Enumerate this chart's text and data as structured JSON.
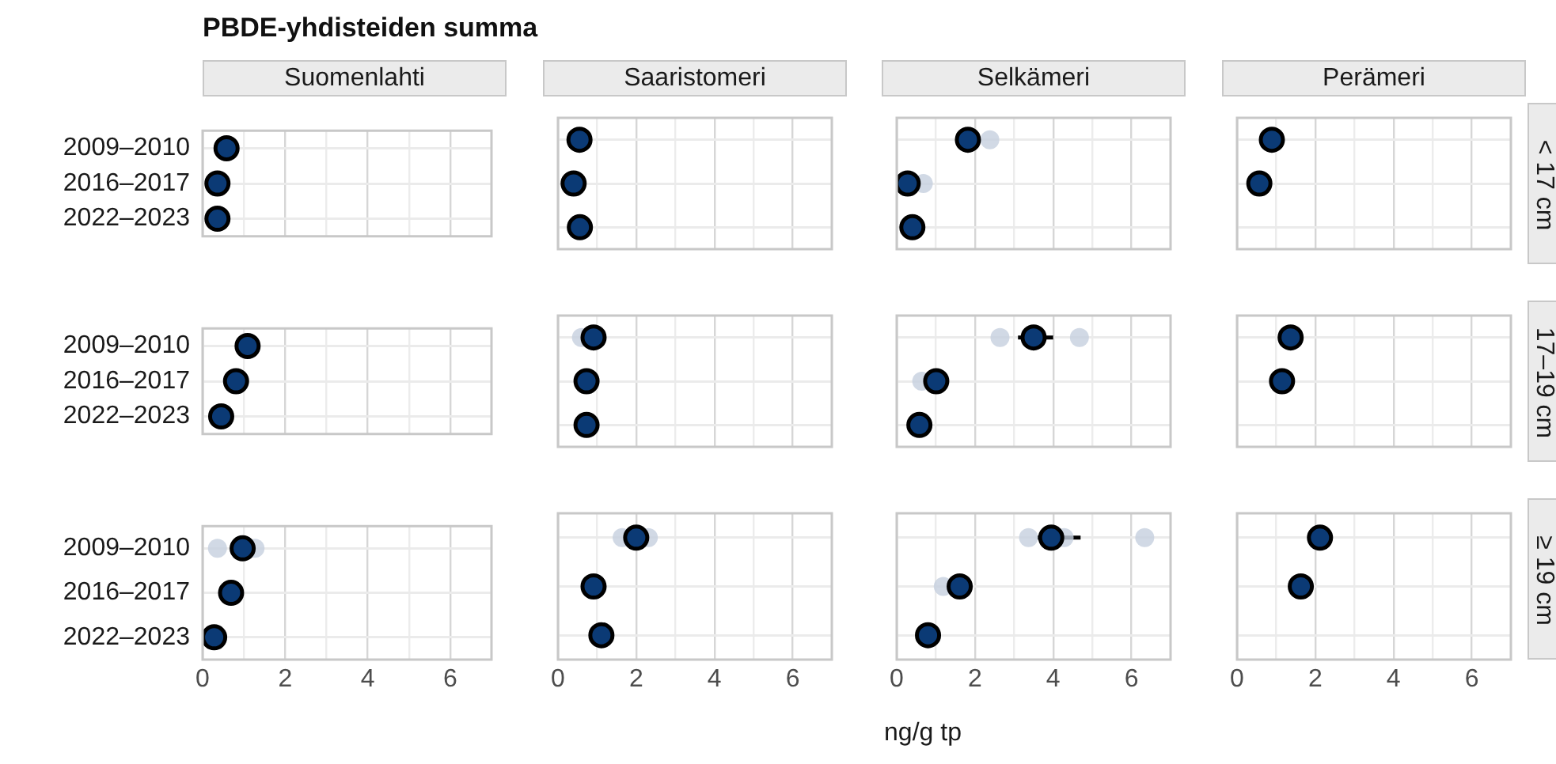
{
  "chart_data": [
    {
      "type": "scatter",
      "title": "PBDE-yhdisteiden summa",
      "subtitle": "Suomenlahti",
      "orientation": "horizontal",
      "categories": [
        "2009–2010",
        "2016–2017",
        "2022–2023"
      ],
      "xlim": [
        0,
        7
      ],
      "xticks": [
        0,
        {
          "value": 1,
          "label": null
        },
        2,
        {
          "value": 3,
          "label": null
        },
        4,
        {
          "value": 5,
          "label": null
        },
        6
      ],
      "grid": true,
      "marker": "circle",
      "tick_labels": "y",
      "series": [
        {
          "color": "#0b3a75",
          "values": [
            0.58,
            0.36,
            0.36
          ]
        }
      ]
    },
    {
      "type": "scatter",
      "subtitle": "Saaristomeri",
      "orientation": "horizontal",
      "categories": [
        "2009–2010",
        "2016–2017",
        "2022–2023"
      ],
      "xlim": [
        0,
        7
      ],
      "xticks": [
        0,
        {
          "value": 1,
          "label": null
        },
        2,
        {
          "value": 3,
          "label": null
        },
        4,
        {
          "value": 5,
          "label": null
        },
        6
      ],
      "grid": true,
      "marker": "circle",
      "tick_labels": false,
      "series": [
        {
          "color": "#0b3a75",
          "values": [
            0.55,
            0.4,
            0.56
          ]
        }
      ]
    },
    {
      "type": "scatter",
      "subtitle": "Selkämeri",
      "orientation": "horizontal",
      "categories": [
        "2009–2010",
        "2016–2017",
        "2022–2023"
      ],
      "xlim": [
        0,
        7
      ],
      "xticks": [
        0,
        {
          "value": 1,
          "label": null
        },
        2,
        {
          "value": 3,
          "label": null
        },
        4,
        {
          "value": 5,
          "label": null
        },
        6
      ],
      "grid": true,
      "marker": "circle",
      "tick_labels": false,
      "series": [
        {
          "color": "#c5d0de",
          "x": [
            "2009–2010",
            "2016–2017"
          ],
          "values": [
            2.38,
            0.68
          ]
        },
        {
          "color": "#0b3a75",
          "values": [
            1.82,
            0.28,
            0.4
          ]
        }
      ]
    },
    {
      "type": "scatter",
      "subtitle": "Perämeri",
      "y2label": "< 17 cm",
      "orientation": "horizontal",
      "categories": [
        "2009–2010",
        "2016–2017",
        "2022–2023"
      ],
      "xlim": [
        0,
        7
      ],
      "xticks": [
        0,
        {
          "value": 1,
          "label": null
        },
        2,
        {
          "value": 3,
          "label": null
        },
        4,
        {
          "value": 5,
          "label": null
        },
        6
      ],
      "grid": true,
      "marker": "circle",
      "tick_labels": false,
      "series": [
        {
          "color": "#0b3a75",
          "values": [
            0.89,
            0.57,
            null
          ]
        }
      ]
    },
    {
      "type": "scatter",
      "orientation": "horizontal",
      "categories": [
        "2009–2010",
        "2016–2017",
        "2022–2023"
      ],
      "xlim": [
        0,
        7
      ],
      "xticks": [
        0,
        {
          "value": 1,
          "label": null
        },
        2,
        {
          "value": 3,
          "label": null
        },
        4,
        {
          "value": 5,
          "label": null
        },
        6
      ],
      "grid": true,
      "marker": "circle",
      "tick_labels": "y",
      "series": [
        {
          "color": "#0b3a75",
          "values": [
            1.09,
            0.81,
            0.45
          ]
        }
      ]
    },
    {
      "type": "scatter",
      "orientation": "horizontal",
      "categories": [
        "2009–2010",
        "2016–2017",
        "2022–2023"
      ],
      "xlim": [
        0,
        7
      ],
      "xticks": [
        0,
        {
          "value": 1,
          "label": null
        },
        2,
        {
          "value": 3,
          "label": null
        },
        4,
        {
          "value": 5,
          "label": null
        },
        6
      ],
      "grid": true,
      "marker": "circle",
      "tick_labels": false,
      "series": [
        {
          "color": "#c5d0de",
          "x": [
            "2009–2010",
            "2009–2010"
          ],
          "values": [
            0.6,
            null
          ]
        },
        {
          "color": "#0b3a75",
          "values": [
            0.91,
            0.73,
            0.73
          ]
        }
      ]
    },
    {
      "type": "scatter",
      "orientation": "horizontal",
      "categories": [
        "2009–2010",
        "2016–2017",
        "2022–2023"
      ],
      "xlim": [
        0,
        7
      ],
      "xticks": [
        0,
        {
          "value": 1,
          "label": null
        },
        2,
        {
          "value": 3,
          "label": null
        },
        4,
        {
          "value": 5,
          "label": null
        },
        6
      ],
      "grid": true,
      "marker": "circle",
      "tick_labels": false,
      "series": [
        {
          "color": "#c5d0de",
          "x": [
            "2009–2010",
            "2009–2010",
            "2016–2017"
          ],
          "values": [
            2.64,
            4.67,
            0.64
          ]
        },
        {
          "color": "#0b3a75",
          "values": [
            3.5,
            1.01,
            0.58
          ],
          "errors": [
            [
              3.1,
              4.0
            ],
            null,
            null
          ]
        }
      ]
    },
    {
      "type": "scatter",
      "y2label": "17–19 cm",
      "orientation": "horizontal",
      "categories": [
        "2009–2010",
        "2016–2017",
        "2022–2023"
      ],
      "xlim": [
        0,
        7
      ],
      "xticks": [
        0,
        {
          "value": 1,
          "label": null
        },
        2,
        {
          "value": 3,
          "label": null
        },
        4,
        {
          "value": 5,
          "label": null
        },
        6
      ],
      "grid": true,
      "marker": "circle",
      "tick_labels": false,
      "series": [
        {
          "color": "#0b3a75",
          "values": [
            1.37,
            1.15,
            null
          ]
        }
      ]
    },
    {
      "type": "scatter",
      "orientation": "horizontal",
      "categories": [
        "2009–2010",
        "2016–2017",
        "2022–2023"
      ],
      "xlim": [
        0,
        7
      ],
      "xticks": [
        0,
        {
          "value": 1,
          "label": null
        },
        2,
        {
          "value": 3,
          "label": null
        },
        4,
        {
          "value": 5,
          "label": null
        },
        6
      ],
      "grid": true,
      "marker": "circle",
      "series": [
        {
          "color": "#c5d0de",
          "x": [
            "2009–2010",
            "2009–2010"
          ],
          "values": [
            0.36,
            1.27
          ]
        },
        {
          "color": "#0b3a75",
          "values": [
            0.97,
            0.69,
            0.28
          ]
        }
      ]
    },
    {
      "type": "scatter",
      "orientation": "horizontal",
      "categories": [
        "2009–2010",
        "2016–2017",
        "2022–2023"
      ],
      "xlim": [
        0,
        7
      ],
      "xticks": [
        0,
        {
          "value": 1,
          "label": null
        },
        2,
        {
          "value": 3,
          "label": null
        },
        4,
        {
          "value": 5,
          "label": null
        },
        6
      ],
      "grid": true,
      "marker": "circle",
      "tick_labels": "x",
      "series": [
        {
          "color": "#c5d0de",
          "x": [
            "2009–2010",
            "2009–2010"
          ],
          "values": [
            1.64,
            2.31
          ]
        },
        {
          "color": "#0b3a75",
          "values": [
            2.0,
            0.91,
            1.11
          ]
        }
      ]
    },
    {
      "type": "scatter",
      "xlabel": "ng/g tp",
      "orientation": "horizontal",
      "categories": [
        "2009–2010",
        "2016–2017",
        "2022–2023"
      ],
      "xlim": [
        0,
        7
      ],
      "xticks": [
        0,
        {
          "value": 1,
          "label": null
        },
        2,
        {
          "value": 3,
          "label": null
        },
        4,
        {
          "value": 5,
          "label": null
        },
        6
      ],
      "grid": true,
      "marker": "circle",
      "tick_labels": "x",
      "series": [
        {
          "color": "#c5d0de",
          "x": [
            "2009–2010",
            "2009–2010",
            "2009–2010",
            "2016–2017"
          ],
          "values": [
            3.37,
            4.28,
            6.34,
            1.19
          ]
        },
        {
          "color": "#0b3a75",
          "values": [
            3.95,
            1.61,
            0.8
          ],
          "errors": [
            [
              3.6,
              4.7
            ],
            null,
            null
          ]
        }
      ]
    },
    {
      "type": "scatter",
      "y2label": "≥ 19 cm",
      "orientation": "horizontal",
      "categories": [
        "2009–2010",
        "2016–2017",
        "2022–2023"
      ],
      "xlim": [
        0,
        7
      ],
      "xticks": [
        0,
        {
          "value": 1,
          "label": null
        },
        2,
        {
          "value": 3,
          "label": null
        },
        4,
        {
          "value": 5,
          "label": null
        },
        6
      ],
      "grid": true,
      "marker": "circle",
      "tick_labels": "x",
      "series": [
        {
          "color": "#0b3a75",
          "values": [
            2.12,
            1.63,
            null
          ]
        }
      ]
    }
  ]
}
